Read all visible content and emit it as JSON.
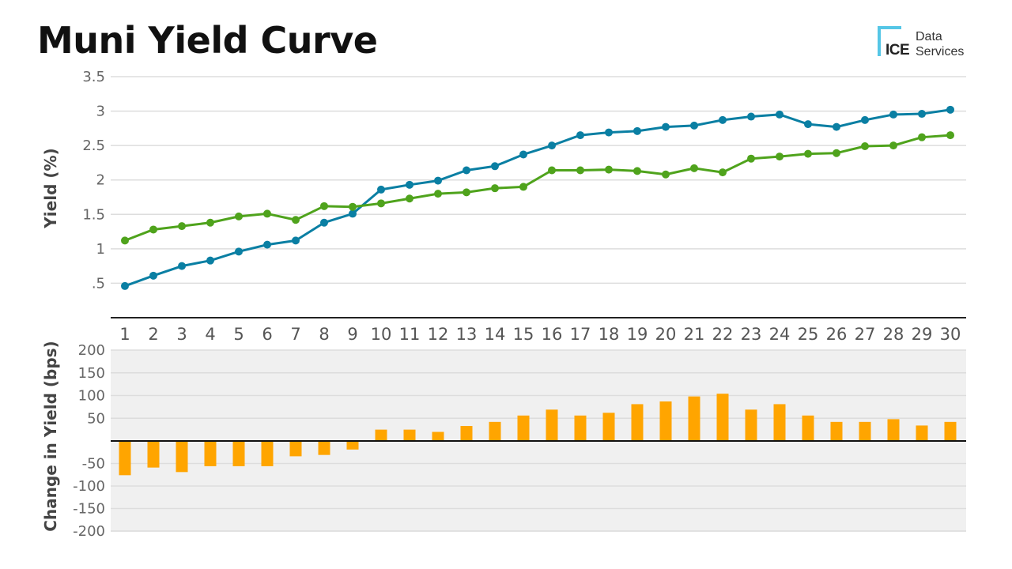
{
  "title": "Muni Yield Curve",
  "logo": {
    "mark_text": "ICE",
    "line1": "Data",
    "line2": "Services"
  },
  "chart_data": [
    {
      "type": "line",
      "ylabel": "Yield (%)",
      "ylim": [
        0,
        3.5
      ],
      "yticks": [
        ".5",
        "1",
        "1.5",
        "2",
        "2.5",
        "3",
        "3.5"
      ],
      "ytick_values": [
        0.5,
        1,
        1.5,
        2,
        2.5,
        3,
        3.5
      ],
      "x": [
        1,
        2,
        3,
        4,
        5,
        6,
        7,
        8,
        9,
        10,
        11,
        12,
        13,
        14,
        15,
        16,
        17,
        18,
        19,
        20,
        21,
        22,
        23,
        24,
        25,
        26,
        27,
        28,
        29,
        30
      ],
      "grid": true,
      "series": [
        {
          "color": "#0a7fa3",
          "values": [
            0.46,
            0.61,
            0.75,
            0.83,
            0.96,
            1.06,
            1.12,
            1.38,
            1.51,
            1.86,
            1.93,
            1.99,
            2.14,
            2.2,
            2.37,
            2.5,
            2.65,
            2.69,
            2.71,
            2.77,
            2.79,
            2.87,
            2.92,
            2.95,
            2.81,
            2.77,
            2.87,
            2.95,
            2.96,
            3.02
          ]
        },
        {
          "color": "#4fa31c",
          "values": [
            1.12,
            1.28,
            1.33,
            1.38,
            1.47,
            1.51,
            1.42,
            1.62,
            1.61,
            1.66,
            1.73,
            1.8,
            1.82,
            1.88,
            1.9,
            2.14,
            2.14,
            2.15,
            2.13,
            2.08,
            2.17,
            2.11,
            2.31,
            2.34,
            2.38,
            2.39,
            2.49,
            2.5,
            2.62,
            2.65
          ]
        }
      ]
    },
    {
      "type": "bar",
      "ylabel": "Change in Yield  (bps)",
      "ylim": [
        -200,
        200
      ],
      "yticks": [
        "200",
        "150",
        "100",
        "50",
        "-50",
        "-100",
        "-150",
        "-200"
      ],
      "ytick_values": [
        200,
        150,
        100,
        50,
        -50,
        -100,
        -150,
        -200
      ],
      "categories": [
        "1",
        "2",
        "3",
        "4",
        "5",
        "6",
        "7",
        "8",
        "9",
        "10",
        "11",
        "12",
        "13",
        "14",
        "15",
        "16",
        "17",
        "18",
        "19",
        "20",
        "21",
        "22",
        "23",
        "24",
        "25",
        "26",
        "27",
        "28",
        "29",
        "30"
      ],
      "color": "#ffa500",
      "values": [
        -76,
        -59,
        -69,
        -56,
        -56,
        -56,
        -34,
        -31,
        -19,
        25,
        25,
        20,
        33,
        42,
        56,
        69,
        56,
        62,
        81,
        87,
        98,
        104,
        69,
        81,
        56,
        42,
        42,
        48,
        34,
        42
      ],
      "grid": true
    }
  ]
}
